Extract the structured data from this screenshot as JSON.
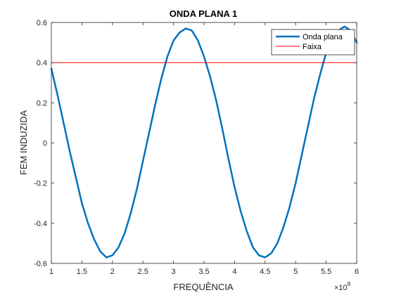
{
  "chart_data": {
    "type": "line",
    "title": "ONDA PLANA 1",
    "xlabel": "FREQUÊNCIA",
    "ylabel": "FEM INDUZIDA",
    "x_exponent_base": "×10",
    "x_exponent_power": "8",
    "xlim": [
      1,
      6
    ],
    "ylim": [
      -0.6,
      0.6
    ],
    "x_ticks": [
      1,
      1.5,
      2,
      2.5,
      3,
      3.5,
      4,
      4.5,
      5,
      5.5,
      6
    ],
    "x_tick_labels": [
      "1",
      "1.5",
      "2",
      "2.5",
      "3",
      "3.5",
      "4",
      "4.5",
      "5",
      "5.5",
      "6"
    ],
    "y_ticks": [
      -0.6,
      -0.4,
      -0.2,
      0,
      0.2,
      0.4,
      0.6
    ],
    "y_tick_labels": [
      "-0.6",
      "-0.4",
      "-0.2",
      "0",
      "0.2",
      "0.4",
      "0.6"
    ],
    "grid": false,
    "legend_position": "top-right",
    "series": [
      {
        "name": "Onda plana",
        "color": "#0072BD",
        "line_width": "thick",
        "x": [
          1.0,
          1.1,
          1.2,
          1.3,
          1.4,
          1.5,
          1.6,
          1.7,
          1.8,
          1.9,
          2.0,
          2.1,
          2.2,
          2.3,
          2.4,
          2.5,
          2.6,
          2.7,
          2.8,
          2.9,
          3.0,
          3.1,
          3.2,
          3.3,
          3.4,
          3.5,
          3.6,
          3.7,
          3.8,
          3.9,
          4.0,
          4.1,
          4.2,
          4.3,
          4.4,
          4.5,
          4.6,
          4.7,
          4.8,
          4.9,
          5.0,
          5.1,
          5.2,
          5.3,
          5.4,
          5.5,
          5.6,
          5.7,
          5.8,
          5.9,
          6.0
        ],
        "y": [
          0.37,
          0.24,
          0.1,
          -0.04,
          -0.17,
          -0.3,
          -0.4,
          -0.48,
          -0.54,
          -0.57,
          -0.56,
          -0.52,
          -0.45,
          -0.35,
          -0.23,
          -0.09,
          0.05,
          0.19,
          0.32,
          0.43,
          0.51,
          0.55,
          0.57,
          0.56,
          0.51,
          0.43,
          0.33,
          0.21,
          0.07,
          -0.08,
          -0.22,
          -0.34,
          -0.44,
          -0.52,
          -0.56,
          -0.57,
          -0.55,
          -0.5,
          -0.42,
          -0.32,
          -0.2,
          -0.06,
          0.08,
          0.22,
          0.34,
          0.45,
          0.52,
          0.56,
          0.58,
          0.56,
          0.5
        ]
      },
      {
        "name": "Faixa",
        "color": "#FF0000",
        "line_width": "thin",
        "x": [
          1,
          6
        ],
        "y": [
          0.4,
          0.4
        ]
      }
    ]
  }
}
